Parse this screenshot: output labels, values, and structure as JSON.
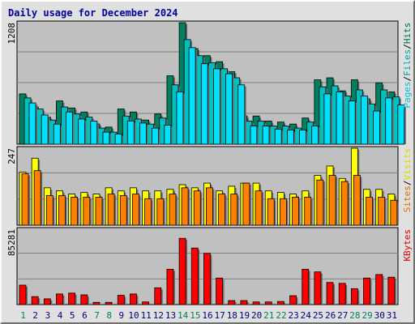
{
  "title": "Daily usage for December 2024",
  "chart_data": [
    {
      "type": "bar",
      "panel": "hits-files-pages",
      "categories": [
        "1",
        "2",
        "3",
        "4",
        "5",
        "6",
        "7",
        "8",
        "9",
        "10",
        "11",
        "12",
        "13",
        "14",
        "15",
        "16",
        "17",
        "18",
        "19",
        "20",
        "21",
        "22",
        "23",
        "24",
        "25",
        "26",
        "27",
        "28",
        "29",
        "30",
        "31"
      ],
      "weekend_days": [
        "1",
        "7",
        "8",
        "14",
        "15",
        "21",
        "22",
        "28",
        "29"
      ],
      "ylim": [
        0,
        1208
      ],
      "tick_label": "1208",
      "right_label": [
        "Pages",
        "/",
        "Files",
        "/",
        "Hits"
      ],
      "series": [
        {
          "name": "Hits",
          "color": "#008060",
          "values": [
            500,
            370,
            270,
            430,
            360,
            320,
            200,
            170,
            350,
            320,
            240,
            300,
            680,
            1208,
            950,
            880,
            820,
            720,
            280,
            280,
            230,
            220,
            200,
            260,
            640,
            660,
            530,
            640,
            450,
            610,
            520
          ]
        },
        {
          "name": "Files",
          "color": "#00c0c0",
          "values": [
            460,
            350,
            240,
            370,
            300,
            270,
            160,
            120,
            280,
            250,
            200,
            260,
            590,
            1040,
            880,
            810,
            750,
            660,
            230,
            230,
            180,
            180,
            160,
            220,
            570,
            580,
            480,
            540,
            400,
            540,
            470
          ]
        },
        {
          "name": "Pages",
          "color": "#00e0ff",
          "values": [
            410,
            290,
            200,
            320,
            250,
            230,
            120,
            100,
            230,
            210,
            160,
            190,
            520,
            960,
            800,
            750,
            700,
            590,
            180,
            180,
            150,
            140,
            140,
            180,
            500,
            520,
            430,
            480,
            330,
            460,
            390
          ]
        }
      ]
    },
    {
      "type": "bar",
      "panel": "visits-sites",
      "categories": [
        "1",
        "2",
        "3",
        "4",
        "5",
        "6",
        "7",
        "8",
        "9",
        "10",
        "11",
        "12",
        "13",
        "14",
        "15",
        "16",
        "17",
        "18",
        "19",
        "20",
        "21",
        "22",
        "23",
        "24",
        "25",
        "26",
        "27",
        "28",
        "29",
        "30",
        "31"
      ],
      "ylim": [
        0,
        247
      ],
      "tick_label": "247",
      "right_label": [
        "Sites",
        "/",
        "Visits"
      ],
      "series": [
        {
          "name": "Visits",
          "color": "#ffff00",
          "values": [
            170,
            215,
            120,
            110,
            100,
            105,
            100,
            120,
            110,
            120,
            110,
            110,
            115,
            130,
            120,
            135,
            110,
            125,
            135,
            135,
            110,
            105,
            100,
            110,
            160,
            190,
            150,
            247,
            115,
            115,
            100
          ]
        },
        {
          "name": "Sites",
          "color": "#ff8000",
          "values": [
            165,
            175,
            95,
            95,
            90,
            90,
            90,
            100,
            95,
            100,
            85,
            85,
            100,
            120,
            110,
            120,
            100,
            100,
            135,
            110,
            85,
            85,
            90,
            90,
            145,
            160,
            140,
            160,
            90,
            90,
            80
          ]
        }
      ]
    },
    {
      "type": "bar",
      "panel": "kbytes",
      "categories": [
        "1",
        "2",
        "3",
        "4",
        "5",
        "6",
        "7",
        "8",
        "9",
        "10",
        "11",
        "12",
        "13",
        "14",
        "15",
        "16",
        "17",
        "18",
        "19",
        "20",
        "21",
        "22",
        "23",
        "24",
        "25",
        "26",
        "27",
        "28",
        "29",
        "30",
        "31"
      ],
      "ylim": [
        0,
        85281
      ],
      "tick_label": "85281",
      "right_label": [
        "KBytes"
      ],
      "series": [
        {
          "name": "KBytes",
          "color": "#ff0000",
          "values": [
            22000,
            9000,
            6500,
            12000,
            13000,
            11000,
            2500,
            2500,
            10500,
            12000,
            3000,
            19000,
            40000,
            75000,
            64000,
            58000,
            30000,
            4500,
            4500,
            3000,
            3000,
            3500,
            10000,
            40000,
            37000,
            25000,
            24000,
            18000,
            30000,
            34000,
            31000
          ]
        }
      ]
    }
  ],
  "colors": {
    "plot_bg": "#c0c0c0",
    "weekend_day": "#00805c",
    "weekday": "#000080",
    "bar_outline": "#000000",
    "gridline": "#808080"
  }
}
